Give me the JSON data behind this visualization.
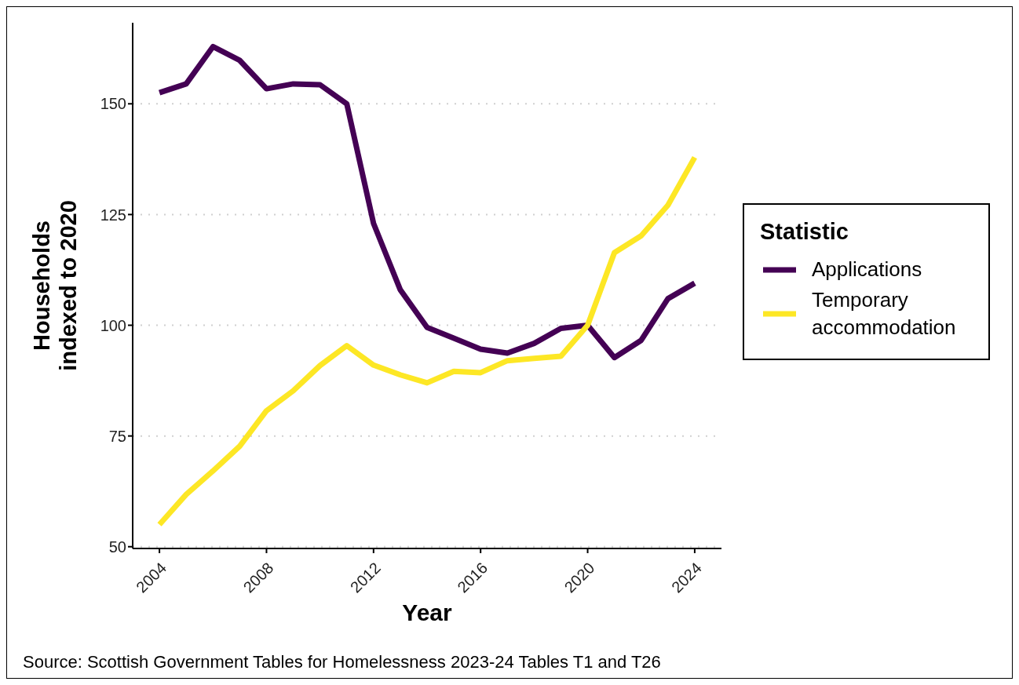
{
  "chart_data": {
    "type": "line",
    "xlabel": "Year",
    "ylabel": "Households indexed to 2020",
    "legend_title": "Statistic",
    "legend": "right",
    "grid": "y",
    "marker": "none",
    "line_style": "solid",
    "x": [
      2004,
      2005,
      2006,
      2007,
      2008,
      2009,
      2010,
      2011,
      2012,
      2013,
      2014,
      2015,
      2016,
      2017,
      2018,
      2019,
      2020,
      2021,
      2022,
      2023,
      2024
    ],
    "xlim": [
      2003,
      2025
    ],
    "xticks": [
      2004,
      2008,
      2012,
      2016,
      2020,
      2024
    ],
    "ylim": [
      49.6,
      168.3
    ],
    "yticks": [
      50,
      75,
      100,
      125,
      150
    ],
    "series": [
      {
        "name": "Applications",
        "color": "#440154",
        "values": [
          152.5,
          154.5,
          162.9,
          159.8,
          153.4,
          154.5,
          154.3,
          150,
          123,
          108,
          99.5,
          97.1,
          94.6,
          93.7,
          95.9,
          99.3,
          100,
          92.7,
          96.6,
          106,
          109.5
        ]
      },
      {
        "name": "Temporary accommodation",
        "color": "#fde725",
        "values": [
          55,
          61.8,
          67.1,
          72.7,
          80.7,
          85.2,
          90.9,
          95.4,
          91,
          88.8,
          87,
          89.6,
          89.3,
          92,
          92.5,
          93,
          100,
          116.4,
          120.2,
          127.1,
          137.9
        ]
      }
    ],
    "annotations": [
      "Source: Scottish Government Tables for Homelessness 2023-24 Tables T1 and T26"
    ]
  }
}
